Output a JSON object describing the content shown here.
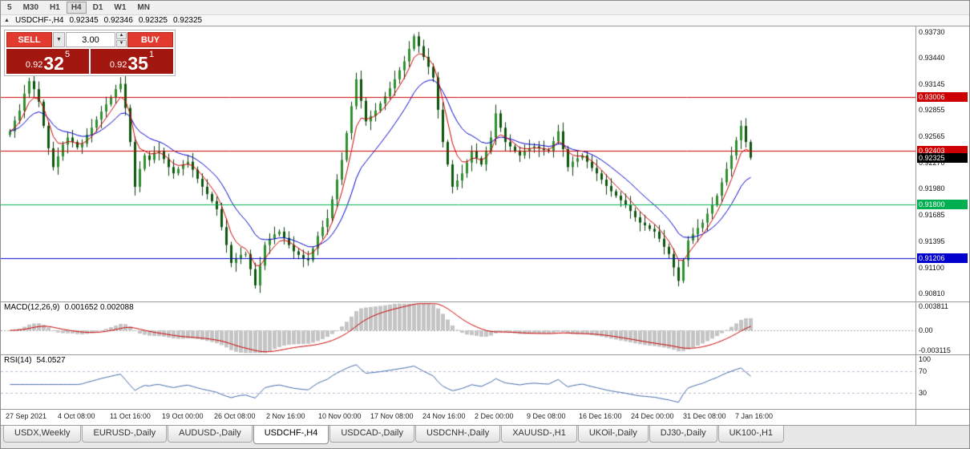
{
  "toolbar": {
    "timeframes": [
      "5",
      "M30",
      "H1",
      "H4",
      "D1",
      "W1",
      "MN"
    ],
    "active": "H4"
  },
  "chart_header": {
    "expand_icon": "▲",
    "symbol": "USDCHF-,H4",
    "open": "0.92345",
    "high": "0.92346",
    "low": "0.92325",
    "close": "0.92325"
  },
  "trade_panel": {
    "sell_label": "SELL",
    "buy_label": "BUY",
    "volume": "3.00",
    "dropdown_icon": "▼",
    "spin_up_icon": "▲",
    "spin_down_icon": "▼",
    "bid": {
      "prefix": "0.92",
      "big": "32",
      "sup": "5"
    },
    "ask": {
      "prefix": "0.92",
      "big": "35",
      "sup": "1"
    },
    "colors": {
      "button_red": "#e23a2e",
      "price_box_red": "#a2170f"
    }
  },
  "price_axis": {
    "min": 0.9072,
    "max": 0.9379,
    "labels": [
      "0.93730",
      "0.93440",
      "0.93145",
      "0.92855",
      "0.92565",
      "0.92270",
      "0.91980",
      "0.91685",
      "0.91395",
      "0.91100",
      "0.90810"
    ]
  },
  "levels": [
    {
      "price": 0.93006,
      "label": "0.93006",
      "color": "#cc0000"
    },
    {
      "price": 0.92403,
      "label": "0.92403",
      "color": "#cc0000"
    },
    {
      "price": 0.918,
      "label": "0.91800",
      "color": "#00b050"
    },
    {
      "price": 0.91206,
      "label": "0.91206",
      "color": "#0000cc"
    }
  ],
  "current_price": {
    "price": 0.92325,
    "label": "0.92325",
    "color": "#000000"
  },
  "indicators": {
    "macd": {
      "label": "MACD(12,26,9)",
      "values": "0.001652 0.002088",
      "axis": [
        "0.003811",
        "0.00",
        "-0.003115"
      ],
      "range": [
        -0.00355,
        0.00415
      ],
      "histogram_color": "#c4c4c4",
      "signal_color": "#cc0000"
    },
    "rsi": {
      "label": "RSI(14)",
      "value": "54.0527",
      "axis": [
        "100",
        "70",
        "30"
      ],
      "range": [
        0,
        100
      ],
      "levels": [
        70,
        30
      ],
      "line_color": "#4169aa",
      "level_color": "#b9b9d2"
    }
  },
  "time_axis": {
    "labels": [
      "27 Sep 2021",
      "4 Oct 08:00",
      "11 Oct 16:00",
      "19 Oct 00:00",
      "26 Oct 08:00",
      "2 Nov 16:00",
      "10 Nov 00:00",
      "17 Nov 08:00",
      "24 Nov 16:00",
      "2 Dec 00:00",
      "9 Dec 08:00",
      "16 Dec 16:00",
      "24 Dec 00:00",
      "31 Dec 08:00",
      "7 Jan 16:00"
    ]
  },
  "tabs": {
    "active_index": 3,
    "items": [
      "USDX,Weekly",
      "EURUSD-,Daily",
      "AUDUSD-,Daily",
      "USDCHF-,H4",
      "USDCAD-,Daily",
      "USDCNH-,Daily",
      "XAUUSD-,H1",
      "UKOil-,Daily",
      "DJ30-,Daily",
      "UK100-,H1"
    ]
  },
  "chart_data": {
    "type": "candlestick",
    "symbol": "USDCHF-",
    "timeframe": "H4",
    "title": "USDCHF-,H4",
    "ylim": [
      0.9072,
      0.9379
    ],
    "colors": {
      "candle_up": "#2f8f2f",
      "candle_down": "#0c540c",
      "wick": "#0a3c0a",
      "ma_fast": "#cc0000",
      "ma_slow": "#0000cc"
    },
    "ma_fast_period": 5,
    "ma_slow_period": 14,
    "closes": [
      0.9262,
      0.9274,
      0.9285,
      0.9304,
      0.9318,
      0.9309,
      0.9295,
      0.9268,
      0.9243,
      0.9222,
      0.9234,
      0.9247,
      0.9255,
      0.925,
      0.9244,
      0.9248,
      0.9258,
      0.9266,
      0.9275,
      0.9284,
      0.9292,
      0.93,
      0.9309,
      0.9315,
      0.9288,
      0.925,
      0.92,
      0.922,
      0.9235,
      0.923,
      0.9238,
      0.924,
      0.9231,
      0.9222,
      0.9215,
      0.922,
      0.9225,
      0.9228,
      0.9219,
      0.9209,
      0.92,
      0.9192,
      0.9184,
      0.9175,
      0.9155,
      0.9135,
      0.9115,
      0.912,
      0.9124,
      0.9125,
      0.9108,
      0.909,
      0.9112,
      0.9135,
      0.9142,
      0.9147,
      0.915,
      0.9143,
      0.9135,
      0.9128,
      0.9124,
      0.912,
      0.9118,
      0.9131,
      0.9145,
      0.9155,
      0.9165,
      0.9186,
      0.9208,
      0.923,
      0.926,
      0.929,
      0.932,
      0.9296,
      0.9273,
      0.9279,
      0.9285,
      0.9293,
      0.9301,
      0.931,
      0.932,
      0.933,
      0.934,
      0.9354,
      0.9368,
      0.9357,
      0.9345,
      0.9334,
      0.9322,
      0.9286,
      0.925,
      0.9225,
      0.92,
      0.9207,
      0.9215,
      0.9227,
      0.924,
      0.9232,
      0.9225,
      0.924,
      0.9255,
      0.9282,
      0.9266,
      0.925,
      0.9245,
      0.924,
      0.9235,
      0.924,
      0.9243,
      0.9245,
      0.9243,
      0.9241,
      0.924,
      0.9251,
      0.9262,
      0.9242,
      0.9222,
      0.9228,
      0.9232,
      0.9235,
      0.9228,
      0.9221,
      0.9215,
      0.9208,
      0.9201,
      0.9195,
      0.919,
      0.9185,
      0.918,
      0.9173,
      0.9166,
      0.916,
      0.9157,
      0.9153,
      0.915,
      0.9142,
      0.9133,
      0.9125,
      0.911,
      0.9095,
      0.9118,
      0.914,
      0.9147,
      0.9154,
      0.916,
      0.917,
      0.918,
      0.919,
      0.9205,
      0.922,
      0.9235,
      0.9252,
      0.9268,
      0.925,
      0.92325
    ]
  }
}
